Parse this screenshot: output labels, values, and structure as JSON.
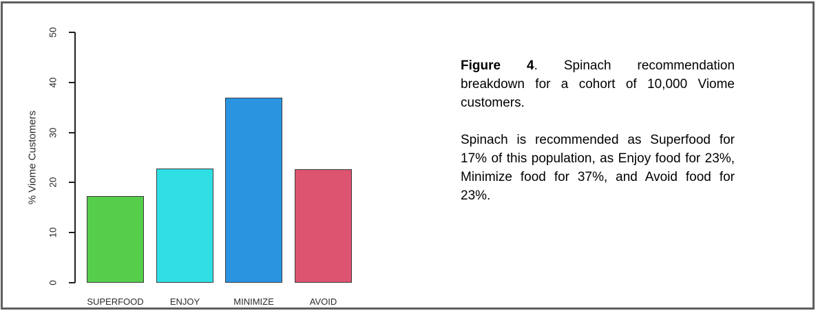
{
  "chart_data": {
    "type": "bar",
    "categories": [
      "SUPERFOOD",
      "ENJOY",
      "MINIMIZE",
      "AVOID"
    ],
    "values": [
      17.3,
      22.8,
      37.0,
      22.7
    ],
    "bar_colors": [
      "#56ce4c",
      "#2fdfe4",
      "#2a94e1",
      "#dd5471"
    ],
    "title": "",
    "xlabel": "",
    "ylabel": "% Viome Customers",
    "ylim": [
      0,
      50
    ],
    "yticks": [
      0,
      10,
      20,
      30,
      40,
      50
    ],
    "grid": false,
    "legend": false
  },
  "caption": {
    "figure_label": "Figure 4",
    "figure_text": ". Spinach recommendation breakdown for a cohort of 10,000 Viome customers.",
    "body": "Spinach is recommended as Superfood for 17% of this population, as Enjoy food for 23%, Minimize food for 37%, and Avoid food for 23%."
  },
  "colors": {
    "frame_border": "#5e5e5e",
    "axis": "#1f1f1f",
    "bar_border": "#3a3a3a",
    "text": "#2b2b2b"
  }
}
